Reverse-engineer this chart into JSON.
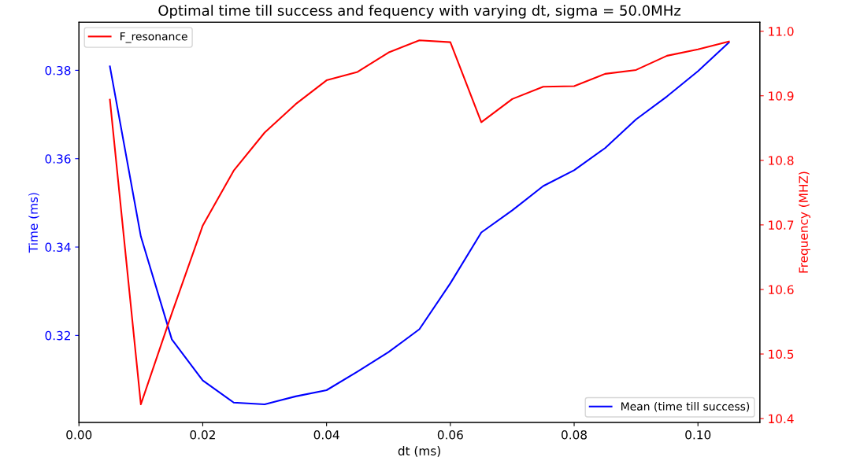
{
  "chart_data": {
    "type": "line",
    "title": "Optimal time till success and fequency with varying dt, sigma = 50.0MHz",
    "xlabel": "dt (ms)",
    "ylabel": "Time (ms)",
    "y2label": "Frequency (MHZ)",
    "x": [
      0.005,
      0.01,
      0.015,
      0.02,
      0.025,
      0.03,
      0.035,
      0.04,
      0.045,
      0.05,
      0.055,
      0.06,
      0.065,
      0.07,
      0.075,
      0.08,
      0.085,
      0.09,
      0.095,
      0.1,
      0.105
    ],
    "series": [
      {
        "name": "Mean (time till success)",
        "color": "#0000ff",
        "values": [
          0.3809,
          0.3424,
          0.3191,
          0.3098,
          0.3048,
          0.3044,
          0.3062,
          0.3076,
          0.3118,
          0.3162,
          0.3214,
          0.3318,
          0.3433,
          0.3483,
          0.3538,
          0.3574,
          0.3624,
          0.3689,
          0.3741,
          0.3798,
          0.3863
        ]
      },
      {
        "name": "F_resonance",
        "color": "#ff0000",
        "axis": "y2",
        "values": [
          10.894,
          10.422,
          10.563,
          10.699,
          10.784,
          10.843,
          10.887,
          10.924,
          10.937,
          10.967,
          10.986,
          10.983,
          10.859,
          10.895,
          10.914,
          10.915,
          10.934,
          10.94,
          10.962,
          10.972,
          10.984
        ]
      }
    ],
    "xlim": [
      0,
      0.11
    ],
    "xticks": [
      {
        "value": 0,
        "label": "0.00"
      },
      {
        "value": 0.02,
        "label": "0.02"
      },
      {
        "value": 0.04,
        "label": "0.04"
      },
      {
        "value": 0.06,
        "label": "0.06"
      },
      {
        "value": 0.08,
        "label": "0.08"
      },
      {
        "value": 0.1,
        "label": "0.10"
      }
    ],
    "ylim": [
      0.3003,
      0.3909
    ],
    "yticks": [
      {
        "value": 0.32,
        "label": "0.32"
      },
      {
        "value": 0.34,
        "label": "0.34"
      },
      {
        "value": 0.36,
        "label": "0.36"
      },
      {
        "value": 0.38,
        "label": "0.38"
      }
    ],
    "y2lim": [
      10.394,
      11.014
    ],
    "y2ticks": [
      {
        "value": 10.4,
        "label": "10.4"
      },
      {
        "value": 10.5,
        "label": "10.5"
      },
      {
        "value": 10.6,
        "label": "10.6"
      },
      {
        "value": 10.7,
        "label": "10.7"
      },
      {
        "value": 10.8,
        "label": "10.8"
      },
      {
        "value": 10.9,
        "label": "10.9"
      },
      {
        "value": 11.0,
        "label": "11.0"
      }
    ],
    "grid": false,
    "legend": [
      "bottom right",
      "top left"
    ]
  }
}
